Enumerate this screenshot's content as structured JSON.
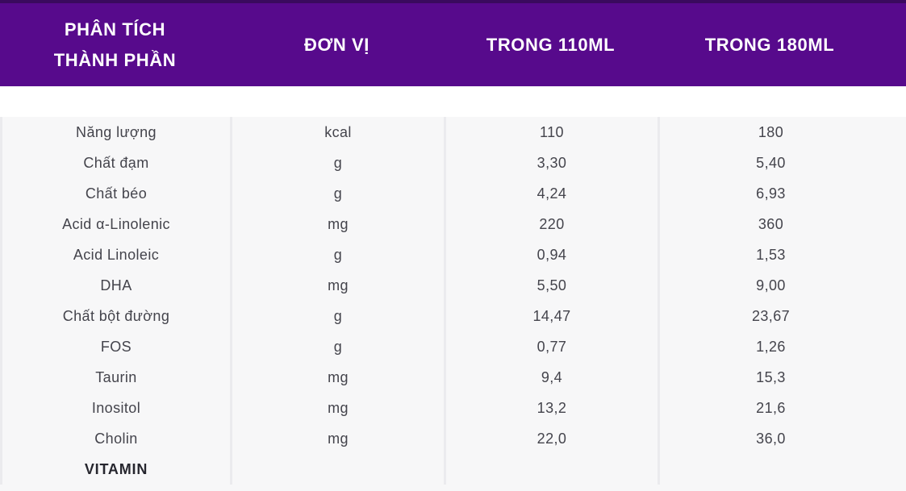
{
  "table": {
    "header": {
      "analysis_line1": "PHÂN TÍCH",
      "analysis_line2": "THÀNH PHẦN",
      "unit": "ĐƠN VỊ",
      "per_110ml": "TRONG 110ML",
      "per_180ml": "TRONG 180ML"
    },
    "rows": [
      {
        "name": "Năng lượng",
        "unit": "kcal",
        "v110": "110",
        "v180": "180",
        "section": false
      },
      {
        "name": "Chất đạm",
        "unit": "g",
        "v110": "3,30",
        "v180": "5,40",
        "section": false
      },
      {
        "name": "Chất béo",
        "unit": "g",
        "v110": "4,24",
        "v180": "6,93",
        "section": false
      },
      {
        "name": "Acid α-Linolenic",
        "unit": "mg",
        "v110": "220",
        "v180": "360",
        "section": false
      },
      {
        "name": "Acid Linoleic",
        "unit": "g",
        "v110": "0,94",
        "v180": "1,53",
        "section": false
      },
      {
        "name": "DHA",
        "unit": "mg",
        "v110": "5,50",
        "v180": "9,00",
        "section": false
      },
      {
        "name": "Chất bột đường",
        "unit": "g",
        "v110": "14,47",
        "v180": "23,67",
        "section": false
      },
      {
        "name": "FOS",
        "unit": "g",
        "v110": "0,77",
        "v180": "1,26",
        "section": false
      },
      {
        "name": "Taurin",
        "unit": "mg",
        "v110": "9,4",
        "v180": "15,3",
        "section": false
      },
      {
        "name": "Inositol",
        "unit": "mg",
        "v110": "13,2",
        "v180": "21,6",
        "section": false
      },
      {
        "name": "Cholin",
        "unit": "mg",
        "v110": "22,0",
        "v180": "36,0",
        "section": false
      },
      {
        "name": "VITAMIN",
        "unit": "",
        "v110": "",
        "v180": "",
        "section": true
      }
    ],
    "colors": {
      "header_bg": "#570a8c",
      "header_top_edge": "#3a0a5e",
      "header_text": "#ffffff",
      "body_bg": "#f7f7f8",
      "separator": "#ebebee",
      "body_text": "#44444c",
      "section_text": "#26262e"
    }
  }
}
